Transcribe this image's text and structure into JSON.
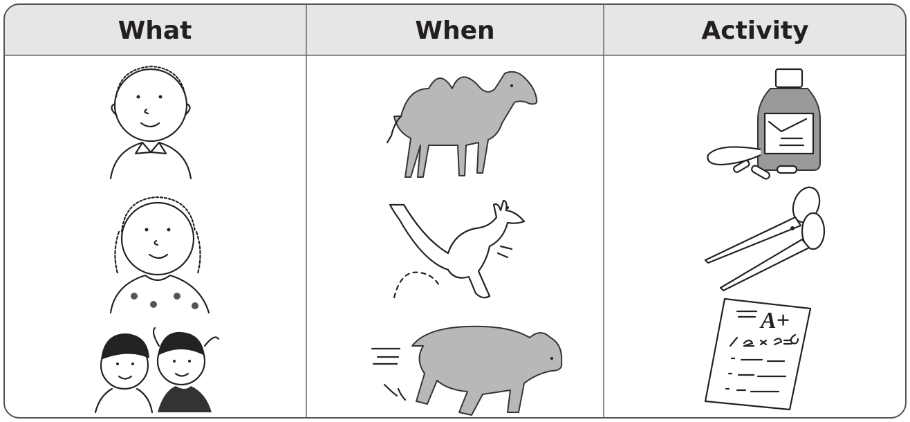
{
  "table": {
    "headers": [
      "What",
      "When",
      "Activity"
    ]
  }
}
